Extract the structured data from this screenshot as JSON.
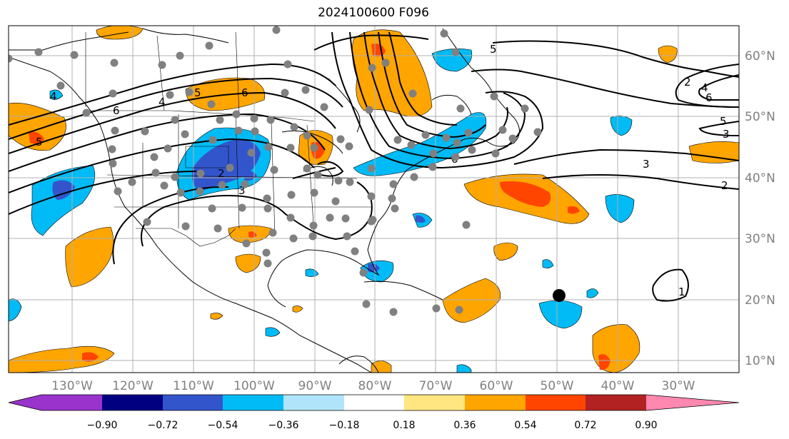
{
  "title": "2024100600 F096",
  "colors": {
    "neg_090_under": "#9933cc",
    "neg_072": "#000080",
    "neg_054": "#3355cc",
    "neg_036": "#00bbf5",
    "neg_018": "#b0e4fa",
    "zero": "#ffffff",
    "pos_018": "#ffe680",
    "pos_036": "#ffa500",
    "pos_054": "#ff4500",
    "pos_072": "#b22222",
    "pos_090_over": "#ff88b0",
    "station": "#808080",
    "storm_marker": "#000000",
    "grid": "#b0b0b0",
    "axis_label": "#808080"
  },
  "map": {
    "lon_ticks": [
      "130°W",
      "120°W",
      "110°W",
      "100°W",
      "90°W",
      "80°W",
      "70°W",
      "60°W",
      "50°W",
      "40°W",
      "30°W"
    ],
    "lat_ticks": [
      "60°N",
      "50°N",
      "40°N",
      "30°N",
      "20°N",
      "10°N"
    ],
    "contour_labels": [
      "5",
      "6",
      "4",
      "2",
      "3",
      "5",
      "6",
      "4",
      "6",
      "5",
      "2",
      "4",
      "6",
      "5",
      "3",
      "3",
      "2",
      "1"
    ],
    "storm_marker": "storm-position"
  },
  "colorbar": {
    "tick_labels": [
      "−0.90",
      "−0.72",
      "−0.54",
      "−0.36",
      "−0.18",
      "0.18",
      "0.36",
      "0.54",
      "0.72",
      "0.90"
    ]
  }
}
